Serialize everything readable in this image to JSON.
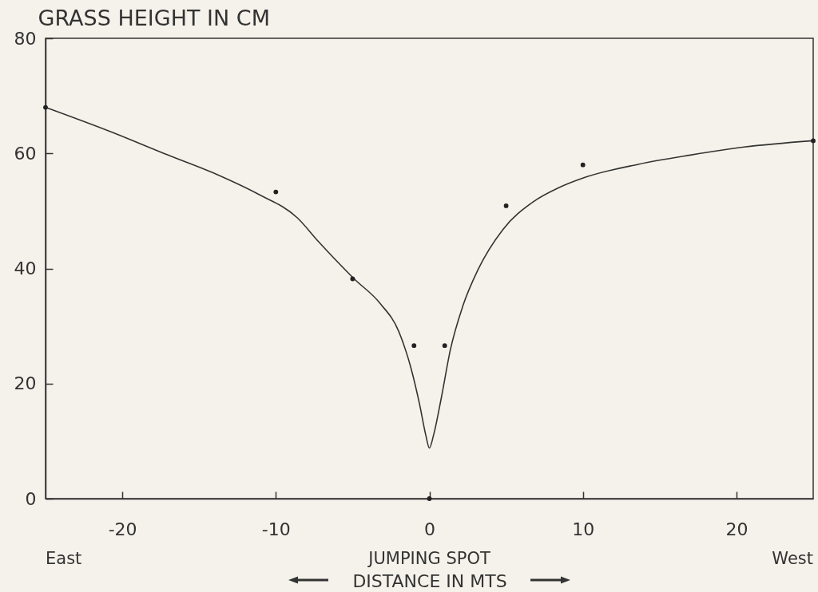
{
  "chart_data": {
    "type": "line",
    "ylabel": "GRASS HEIGHT IN CM",
    "xlabel": "DISTANCE IN MTS",
    "xlim": [
      -25,
      25
    ],
    "ylim": [
      0,
      80
    ],
    "xticks": [
      -20,
      -10,
      0,
      10,
      20
    ],
    "yticks": [
      0,
      20,
      40,
      60,
      80
    ],
    "series": [
      {
        "color": "#333333",
        "x": [
          -25,
          -20.7,
          -17.3,
          -13.8,
          -11.2,
          -8.6,
          -7.2,
          -4.9,
          -3.2,
          -2,
          -1.2,
          -0.63,
          -0.23,
          0,
          0.27,
          0.77,
          1.37,
          2.17,
          3.17,
          4.77,
          6.77,
          8.4,
          10.1,
          13.6,
          17,
          20.5,
          25
        ],
        "values": [
          68,
          63.7,
          60,
          56.3,
          53,
          48.8,
          44.6,
          38.2,
          33.9,
          29.1,
          22.7,
          16.3,
          11,
          8.8,
          11,
          17.4,
          25.9,
          33.4,
          39.8,
          46.7,
          51.6,
          54,
          55.8,
          58.1,
          59.7,
          61.1,
          62.2
        ]
      },
      {
        "type": "scatter",
        "color": "#222222",
        "marker": "circle",
        "x": [
          -25,
          -10,
          -5,
          -1,
          0,
          1,
          5,
          10,
          25
        ],
        "values": [
          68,
          53.3,
          38.2,
          26.6,
          0,
          26.6,
          50.9,
          58,
          62.2
        ]
      }
    ],
    "annotations": [
      "East",
      "JUMPING SPOT",
      "West"
    ]
  }
}
